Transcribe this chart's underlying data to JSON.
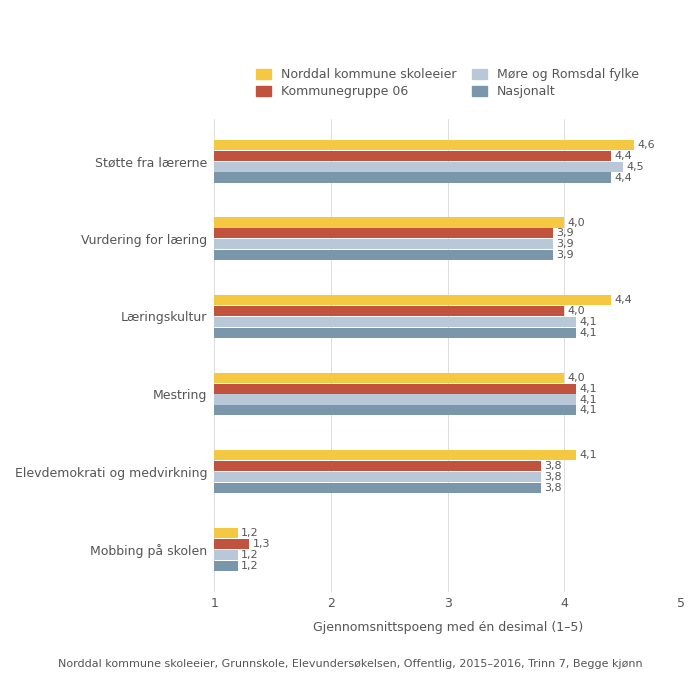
{
  "categories": [
    "Støtte fra lærerne",
    "Vurdering for læring",
    "Læringskultur",
    "Mestring",
    "Elevdemokrati og medvirkning",
    "Mobbing på skolen"
  ],
  "series": {
    "Norddal kommune skoleeier": [
      4.6,
      4.0,
      4.4,
      4.0,
      4.1,
      1.2
    ],
    "Kommunegruppe 06": [
      4.4,
      3.9,
      4.0,
      4.1,
      3.8,
      1.3
    ],
    "Møre og Romsdal fylke": [
      4.5,
      3.9,
      4.1,
      4.1,
      3.8,
      1.2
    ],
    "Nasjonalt": [
      4.4,
      3.9,
      4.1,
      4.1,
      3.8,
      1.2
    ]
  },
  "colors": {
    "Norddal kommune skoleeier": "#F5C842",
    "Kommunegruppe 06": "#C0523E",
    "Møre og Romsdal fylke": "#B8C8D8",
    "Nasjonalt": "#7A96AA"
  },
  "xlim": [
    1,
    5
  ],
  "xticks": [
    1,
    2,
    3,
    4,
    5
  ],
  "xlabel": "Gjennomsnittspoeng med én desimal (1–5)",
  "legend_labels": [
    "Norddal kommune skoleeier",
    "Kommunegruppe 06",
    "Møre og Romsdal fylke",
    "Nasjonalt"
  ],
  "footer": "Norddal kommune skoleeier, Grunnskole, Elevundersøkelsen, Offentlig, 2015–2016, Trinn 7, Begge kjønn",
  "background_color": "#FFFFFF",
  "grid_color": "#D8D8D8",
  "text_color": "#555555",
  "label_fontsize": 9,
  "value_fontsize": 8,
  "xlabel_fontsize": 9,
  "footer_fontsize": 8,
  "legend_fontsize": 9
}
